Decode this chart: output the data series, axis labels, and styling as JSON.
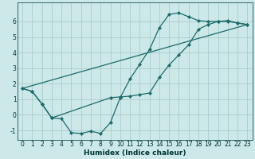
{
  "title": "",
  "xlabel": "Humidex (Indice chaleur)",
  "bg_color": "#cde8e8",
  "grid_color": "#aacccc",
  "line_color": "#1a6b6b",
  "xlim": [
    -0.5,
    23.5
  ],
  "ylim": [
    -1.6,
    7.2
  ],
  "xticks": [
    0,
    1,
    2,
    3,
    4,
    5,
    6,
    7,
    8,
    9,
    10,
    11,
    12,
    13,
    14,
    15,
    16,
    17,
    18,
    19,
    20,
    21,
    22,
    23
  ],
  "yticks": [
    -1,
    0,
    1,
    2,
    3,
    4,
    5,
    6
  ],
  "line1_x": [
    0,
    1,
    2,
    3,
    4,
    5,
    6,
    7,
    8,
    9,
    10,
    11,
    12,
    13,
    14,
    15,
    16,
    17,
    18,
    19,
    20,
    21,
    22,
    23
  ],
  "line1_y": [
    1.7,
    1.5,
    0.7,
    -0.2,
    -0.25,
    -1.15,
    -1.2,
    -1.05,
    -1.2,
    -0.5,
    1.1,
    2.3,
    3.25,
    4.2,
    5.6,
    6.45,
    6.55,
    6.3,
    6.05,
    6.0,
    6.0,
    6.0,
    5.9,
    5.8
  ],
  "line2_x": [
    0,
    1,
    2,
    3,
    9,
    10,
    11,
    12,
    13,
    14,
    15,
    16,
    17,
    18,
    19,
    20,
    21,
    22,
    23
  ],
  "line2_y": [
    1.7,
    1.5,
    0.7,
    -0.2,
    1.1,
    1.15,
    1.2,
    1.3,
    1.4,
    2.4,
    3.2,
    3.85,
    4.5,
    5.5,
    5.8,
    6.0,
    6.05,
    5.9,
    5.8
  ],
  "line3_x": [
    0,
    23
  ],
  "line3_y": [
    1.7,
    5.8
  ],
  "fontsize_label": 6.5,
  "fontsize_tick": 5.5
}
